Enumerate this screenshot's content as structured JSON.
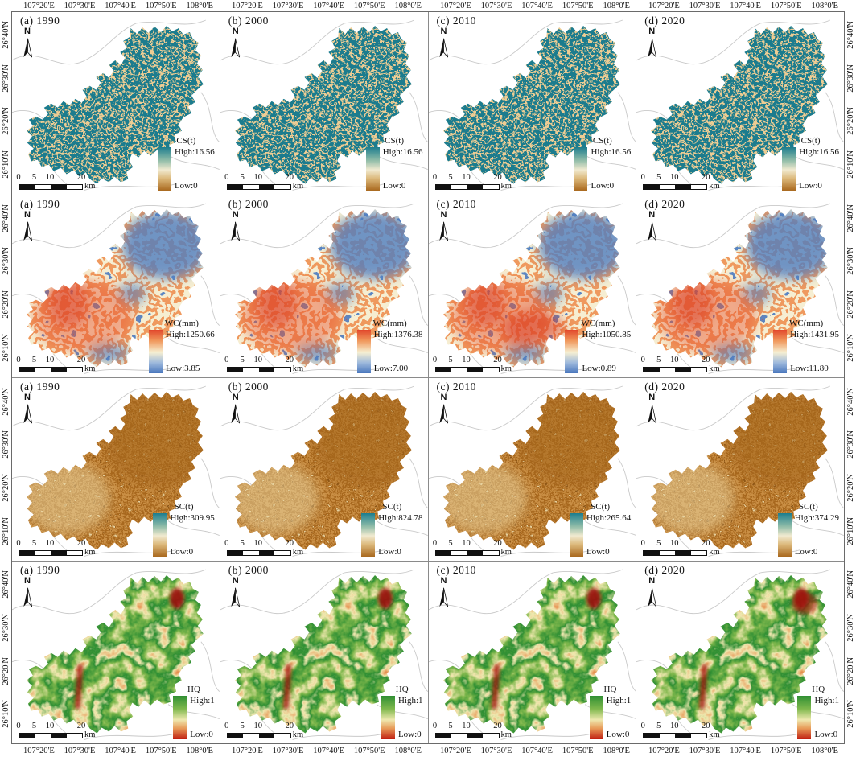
{
  "figure": {
    "type": "map-grid",
    "rows": 4,
    "cols": 4
  },
  "axes": {
    "longitude_ticks": [
      "107°20'E",
      "107°30'E",
      "107°40'E",
      "107°50'E",
      "108°0'E"
    ],
    "latitude_ticks": [
      "26°40'N",
      "26°30'N",
      "26°20'N",
      "26°10'N"
    ]
  },
  "north_label": "N",
  "scalebar": {
    "ticks": [
      "0",
      "5",
      "10",
      "20"
    ],
    "unit": "km"
  },
  "legend_gradients": {
    "CS": [
      "#1C7D8E",
      "#F1EAD0",
      "#A9691F"
    ],
    "WC": [
      "#E1462B",
      "#F6EFD2",
      "#4A77BD"
    ],
    "SC": [
      "#1C7D8E",
      "#F1EAD0",
      "#A9691F"
    ],
    "HQ": [
      "#2F8F33",
      "#EFE9B0",
      "#C01F12"
    ]
  },
  "panels": [
    {
      "row": "CS",
      "col": 0,
      "label": "(a) 1990",
      "legend_title": "CS(t)",
      "high": "High:16.56",
      "low": "Low:0"
    },
    {
      "row": "CS",
      "col": 1,
      "label": "(b) 2000",
      "legend_title": "CS(t)",
      "high": "High:16.56",
      "low": "Low:0"
    },
    {
      "row": "CS",
      "col": 2,
      "label": "(c) 2010",
      "legend_title": "CS(t)",
      "high": "High:16.56",
      "low": "Low:0"
    },
    {
      "row": "CS",
      "col": 3,
      "label": "(d) 2020",
      "legend_title": "CS(t)",
      "high": "High:16.56",
      "low": "Low:0"
    },
    {
      "row": "WC",
      "col": 0,
      "label": "(a) 1990",
      "legend_title": "WC(mm)",
      "high": "High:1250.66",
      "low": "Low:3.85"
    },
    {
      "row": "WC",
      "col": 1,
      "label": "(b) 2000",
      "legend_title": "WC(mm)",
      "high": "High:1376.38",
      "low": "Low:7.00"
    },
    {
      "row": "WC",
      "col": 2,
      "label": "(c) 2010",
      "legend_title": "WC(mm)",
      "high": "High:1050.85",
      "low": "Low:0.89"
    },
    {
      "row": "WC",
      "col": 3,
      "label": "(d) 2020",
      "legend_title": "WC(mm)",
      "high": "High:1431.95",
      "low": "Low:11.80"
    },
    {
      "row": "SC",
      "col": 0,
      "label": "(a) 1990",
      "legend_title": "SC(t)",
      "high": "High:309.95",
      "low": "Low:0"
    },
    {
      "row": "SC",
      "col": 1,
      "label": "(b) 2000",
      "legend_title": "SC(t)",
      "high": "High:824.78",
      "low": "Low:0"
    },
    {
      "row": "SC",
      "col": 2,
      "label": "(c) 2010",
      "legend_title": "SC(t)",
      "high": "High:265.64",
      "low": "Low:0"
    },
    {
      "row": "SC",
      "col": 3,
      "label": "(d) 2020",
      "legend_title": "SC(t)",
      "high": "High:374.29",
      "low": "Low:0"
    },
    {
      "row": "HQ",
      "col": 0,
      "label": "(a) 1990",
      "legend_title": "HQ",
      "high": "High:1",
      "low": "Low:0"
    },
    {
      "row": "HQ",
      "col": 1,
      "label": "(b) 2000",
      "legend_title": "HQ",
      "high": "High:1",
      "low": "Low:0"
    },
    {
      "row": "HQ",
      "col": 2,
      "label": "(c) 2010",
      "legend_title": "HQ",
      "high": "High:1",
      "low": "Low:0"
    },
    {
      "row": "HQ",
      "col": 3,
      "label": "(d) 2020",
      "legend_title": "HQ",
      "high": "High:1",
      "low": "Low:0"
    }
  ]
}
